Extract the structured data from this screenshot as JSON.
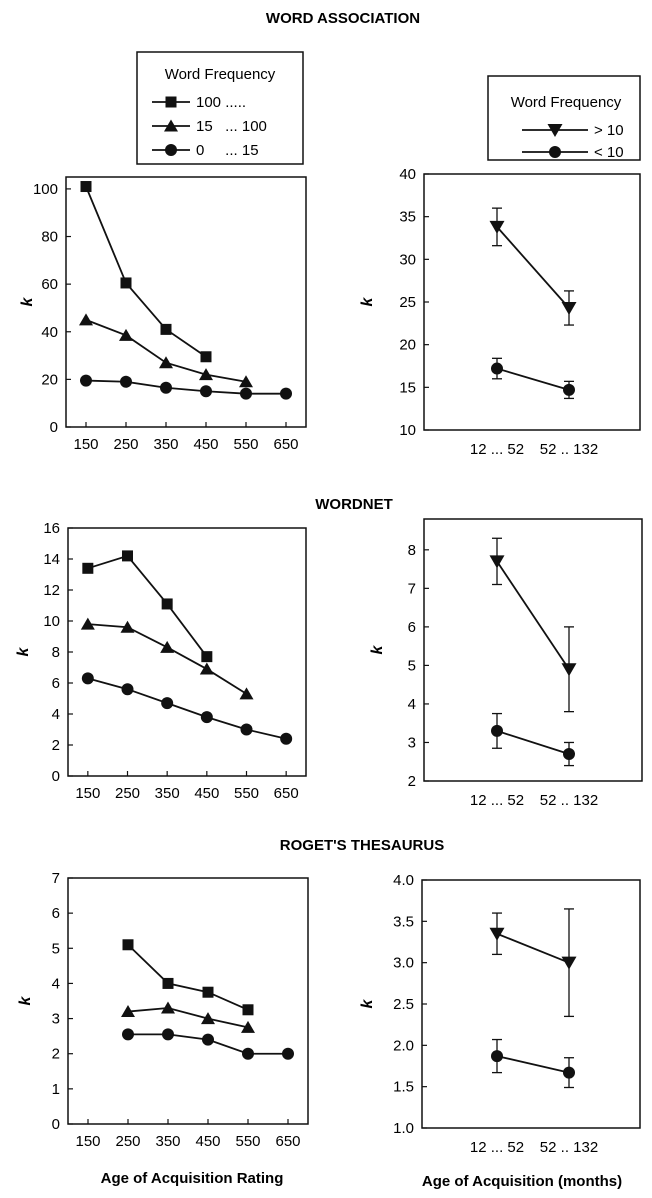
{
  "figure_titles": [
    "WORD ASSOCIATION",
    "WORDNET",
    "ROGET'S THESAURUS"
  ],
  "x_labels": {
    "left": "Age of Acquisition Rating",
    "right": "Age of Acquisition (months)"
  },
  "legends": {
    "left": {
      "title": "Word Frequency",
      "entries": [
        {
          "marker": "square",
          "label": "100 ....."
        },
        {
          "marker": "triangle-up",
          "label": "15   ... 100"
        },
        {
          "marker": "circle",
          "label": "0     ... 15"
        }
      ]
    },
    "right": {
      "title": "Word Frequency",
      "entries": [
        {
          "marker": "triangle-down",
          "label": "> 10"
        },
        {
          "marker": "circle",
          "label": "< 10"
        }
      ]
    }
  },
  "chart_data": [
    {
      "panel": "word-association-rating",
      "type": "line",
      "ylabel": "k",
      "xlim": [
        100,
        700
      ],
      "ylim": [
        0,
        105
      ],
      "x_ticks": [
        150,
        250,
        350,
        450,
        550,
        650
      ],
      "y_ticks": [
        0,
        20,
        40,
        60,
        80,
        100
      ],
      "series": [
        {
          "marker": "square",
          "x": [
            150,
            250,
            350,
            450
          ],
          "y": [
            101,
            60.5,
            41,
            29.5
          ]
        },
        {
          "marker": "triangle-up",
          "x": [
            150,
            250,
            350,
            450,
            550
          ],
          "y": [
            45,
            38.5,
            27,
            22,
            19
          ]
        },
        {
          "marker": "circle",
          "x": [
            150,
            250,
            350,
            450,
            550,
            650
          ],
          "y": [
            19.5,
            19,
            16.5,
            15,
            14,
            14
          ]
        }
      ]
    },
    {
      "panel": "word-association-months",
      "type": "line",
      "ylabel": "k",
      "categories": [
        "12 ... 52",
        "52 .. 132"
      ],
      "ylim": [
        10,
        40
      ],
      "y_ticks": [
        10,
        15,
        20,
        25,
        30,
        35,
        40
      ],
      "series": [
        {
          "marker": "triangle-down",
          "values": [
            33.8,
            24.3
          ],
          "err": [
            2.2,
            2.0
          ]
        },
        {
          "marker": "circle",
          "values": [
            17.2,
            14.7
          ],
          "err": [
            1.2,
            1.0
          ]
        }
      ]
    },
    {
      "panel": "wordnet-rating",
      "type": "line",
      "ylabel": "k",
      "xlim": [
        100,
        700
      ],
      "ylim": [
        0,
        16
      ],
      "x_ticks": [
        150,
        250,
        350,
        450,
        550,
        650
      ],
      "y_ticks": [
        0,
        2,
        4,
        6,
        8,
        10,
        12,
        14,
        16
      ],
      "series": [
        {
          "marker": "square",
          "x": [
            150,
            250,
            350,
            450
          ],
          "y": [
            13.4,
            14.2,
            11.1,
            7.7
          ]
        },
        {
          "marker": "triangle-up",
          "x": [
            150,
            250,
            350,
            450,
            550
          ],
          "y": [
            9.8,
            9.6,
            8.3,
            6.9,
            5.3
          ]
        },
        {
          "marker": "circle",
          "x": [
            150,
            250,
            350,
            450,
            550,
            650
          ],
          "y": [
            6.3,
            5.6,
            4.7,
            3.8,
            3.0,
            2.4
          ]
        }
      ]
    },
    {
      "panel": "wordnet-months",
      "type": "line",
      "ylabel": "k",
      "categories": [
        "12 ... 52",
        "52 .. 132"
      ],
      "ylim": [
        2,
        8.8
      ],
      "y_ticks": [
        2,
        3,
        4,
        5,
        6,
        7,
        8
      ],
      "series": [
        {
          "marker": "triangle-down",
          "values": [
            7.7,
            4.9
          ],
          "err": [
            0.6,
            1.1
          ]
        },
        {
          "marker": "circle",
          "values": [
            3.3,
            2.7
          ],
          "err": [
            0.45,
            0.3
          ]
        }
      ]
    },
    {
      "panel": "rogets-rating",
      "type": "line",
      "ylabel": "k",
      "xlim": [
        100,
        700
      ],
      "ylim": [
        0,
        7
      ],
      "x_ticks": [
        150,
        250,
        350,
        450,
        550,
        650
      ],
      "y_ticks": [
        0,
        1,
        2,
        3,
        4,
        5,
        6,
        7
      ],
      "series": [
        {
          "marker": "square",
          "x": [
            250,
            350,
            450,
            550
          ],
          "y": [
            5.1,
            4.0,
            3.75,
            3.25
          ]
        },
        {
          "marker": "triangle-up",
          "x": [
            250,
            350,
            450,
            550
          ],
          "y": [
            3.2,
            3.3,
            3.0,
            2.75
          ]
        },
        {
          "marker": "circle",
          "x": [
            250,
            350,
            450,
            550,
            650
          ],
          "y": [
            2.55,
            2.55,
            2.4,
            2.0,
            2.0
          ]
        }
      ]
    },
    {
      "panel": "rogets-months",
      "type": "line",
      "ylabel": "k",
      "categories": [
        "12 ... 52",
        "52 .. 132"
      ],
      "ylim": [
        1.0,
        4.0
      ],
      "y_ticks": [
        1.0,
        1.5,
        2.0,
        2.5,
        3.0,
        3.5,
        4.0
      ],
      "series": [
        {
          "marker": "triangle-down",
          "values": [
            3.35,
            3.0
          ],
          "err": [
            0.25,
            0.65
          ]
        },
        {
          "marker": "circle",
          "values": [
            1.87,
            1.67
          ],
          "err": [
            0.2,
            0.18
          ]
        }
      ]
    }
  ]
}
